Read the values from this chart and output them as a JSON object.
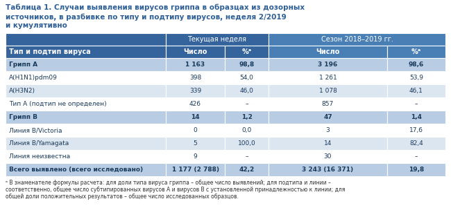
{
  "title_lines": [
    "Таблица 1. Случаи выявления вирусов гриппа в образцах из дозорных",
    "источников, в разбивке по типу и подтипу вирусов, неделя 2/2019",
    "и кумулятивно"
  ],
  "col_headers_row1_left": "Текущая неделя",
  "col_headers_row1_right": "Сезон 2018–2019 гг.",
  "col_headers_row2": [
    "Тип и подтип вируса",
    "Число",
    "%ᵃ",
    "Число",
    "%ᵃ"
  ],
  "rows": [
    {
      "label": "Грипп A",
      "bold": true,
      "shaded": true,
      "vals": [
        "1 163",
        "98,8",
        "3 196",
        "98,6"
      ]
    },
    {
      "label": "A(H1N1)pdm09",
      "bold": false,
      "shaded": false,
      "vals": [
        "398",
        "54,0",
        "1 261",
        "53,9"
      ]
    },
    {
      "label": "A(H3N2)",
      "bold": false,
      "shaded": true,
      "vals": [
        "339",
        "46,0",
        "1 078",
        "46,1"
      ]
    },
    {
      "label": "Тип А (подтип не определен)",
      "bold": false,
      "shaded": false,
      "vals": [
        "426",
        "–",
        "857",
        "–"
      ]
    },
    {
      "label": "Грипп B",
      "bold": true,
      "shaded": true,
      "vals": [
        "14",
        "1,2",
        "47",
        "1,4"
      ]
    },
    {
      "label": "Линия B/Victoria",
      "bold": false,
      "shaded": false,
      "vals": [
        "0",
        "0,0",
        "3",
        "17,6"
      ]
    },
    {
      "label": "Линия B/Yamagata",
      "bold": false,
      "shaded": true,
      "vals": [
        "5",
        "100,0",
        "14",
        "82,4"
      ]
    },
    {
      "label": "Линия неизвестна",
      "bold": false,
      "shaded": false,
      "vals": [
        "9",
        "–",
        "30",
        "–"
      ]
    },
    {
      "label": "Всего выявлено (всего исследовано)",
      "bold": true,
      "shaded": true,
      "vals": [
        "1 177 (2 788)",
        "42,2",
        "3 243 (16 371)",
        "19,8"
      ]
    }
  ],
  "footnote_lines": [
    "ᵃ В знаменателе формулы расчета: для доли типа вируса гриппа – общее число выявлений; для подтипа и линии –",
    "соответственно, общее число субтипированных вирусов А и вирусов В с установленной принадлежностью к линии; для",
    "общей доли положительных результатов – общее число исследованных образцов."
  ],
  "header_bg_left": "#35639b",
  "header_bg_right": "#4a7fb5",
  "header_text": "#ffffff",
  "bold_row_bg": "#b8cce4",
  "bold_row_text": "#1a3a5c",
  "shaded_bg": "#dce6f1",
  "unshaded_bg": "#ffffff",
  "normal_text": "#1a3a5c",
  "title_color": "#2e5f96",
  "figsize": [
    6.5,
    3.14
  ],
  "dpi": 100
}
